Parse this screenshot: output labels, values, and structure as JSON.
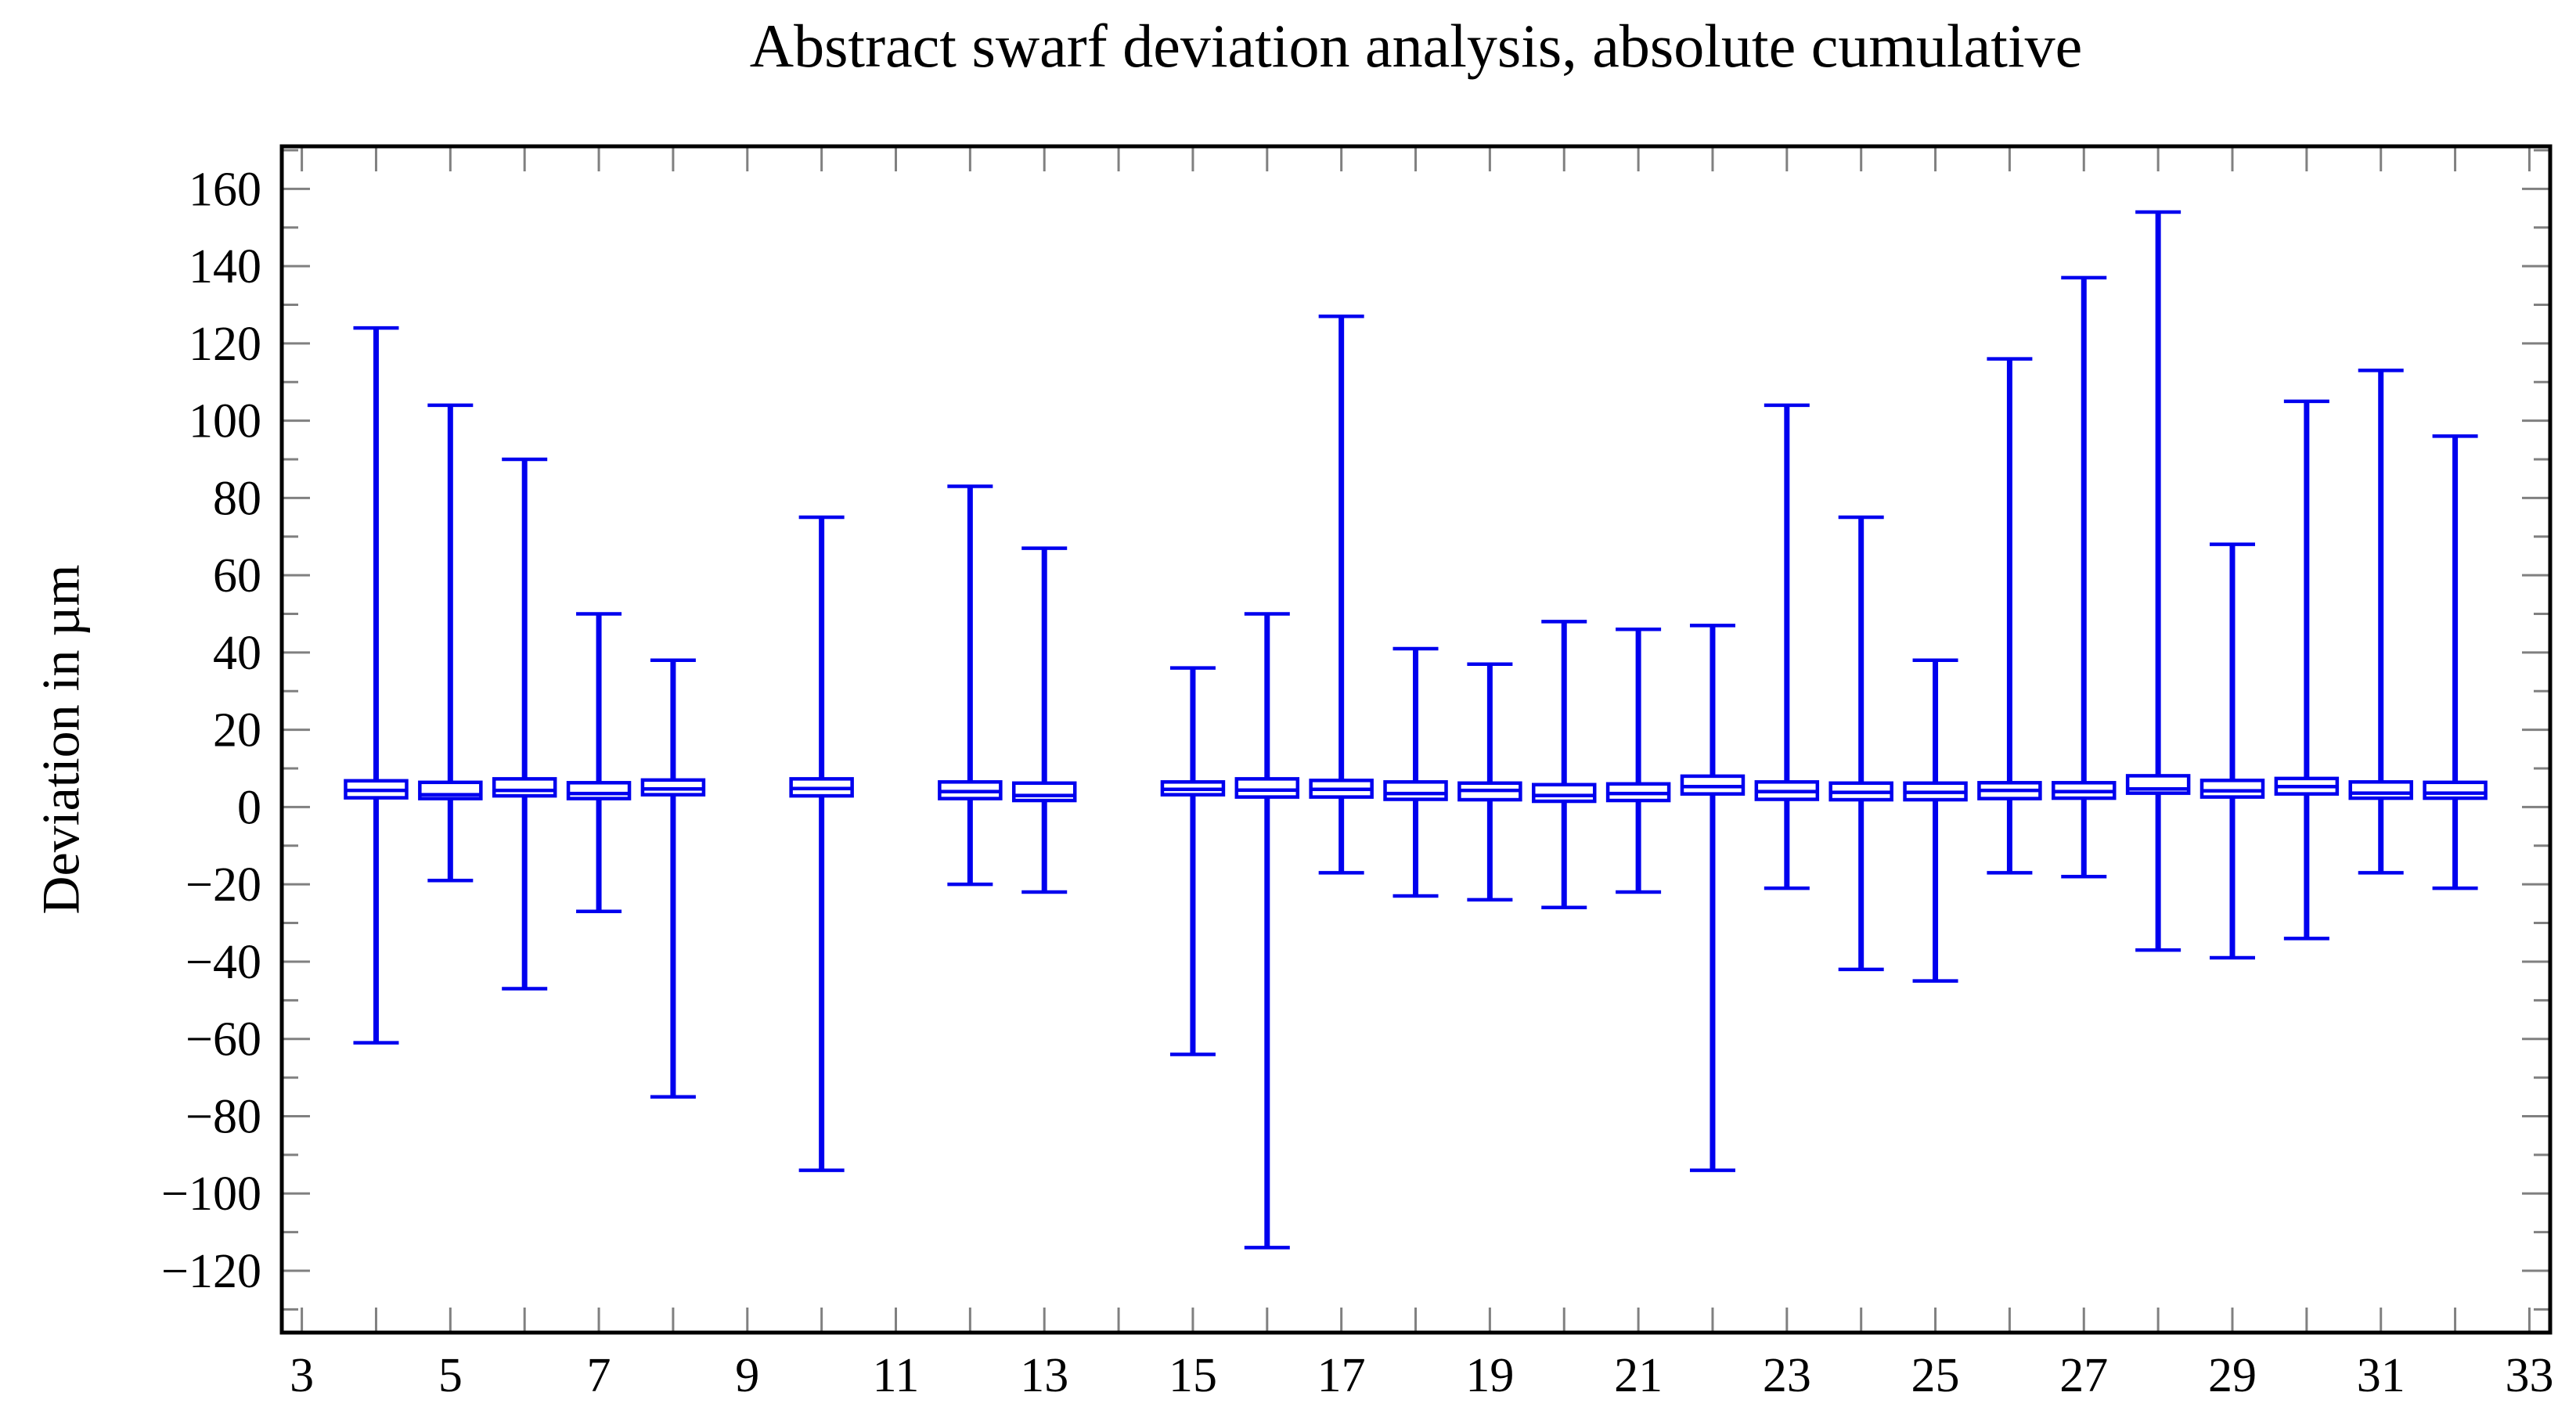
{
  "title": "Abstract swarf deviation analysis, absolute cumulative",
  "y_axis_label": "Deviation in µm",
  "colors": {
    "box": "#0000ee",
    "box_fill": "#ffffff",
    "axis": "#000000",
    "tick": "#808080",
    "text": "#000000",
    "background": "#ffffff"
  },
  "chart_data": {
    "type": "boxplot",
    "title": "Abstract swarf deviation analysis, absolute cumulative",
    "xlabel": "",
    "ylabel": "Deviation in µm",
    "xlim": [
      2.73,
      33.28
    ],
    "ylim": [
      -136,
      171
    ],
    "grid": false,
    "legend": "none",
    "x_tick_step": 1,
    "x_label_values": [
      3,
      5,
      7,
      9,
      11,
      13,
      15,
      17,
      19,
      21,
      23,
      25,
      27,
      29,
      31,
      33
    ],
    "y_major_tick_step": 20,
    "y_minor_tick_step": 10,
    "y_label_values": [
      160,
      140,
      120,
      100,
      80,
      60,
      40,
      20,
      0,
      -20,
      -40,
      -60,
      -80,
      -100,
      -120
    ],
    "mirrored_ticks_top_right": true,
    "boxes": [
      {
        "x": 4,
        "low": -61,
        "q1": 2.4,
        "median": 4.3,
        "q3": 6.8,
        "high": 124
      },
      {
        "x": 5,
        "low": -19,
        "q1": 2.2,
        "median": 3.2,
        "q3": 6.4,
        "high": 104
      },
      {
        "x": 6,
        "low": -47,
        "q1": 2.9,
        "median": 4.3,
        "q3": 7.3,
        "high": 90
      },
      {
        "x": 7,
        "low": -27,
        "q1": 2.2,
        "median": 3.5,
        "q3": 6.3,
        "high": 50
      },
      {
        "x": 8,
        "low": -75,
        "q1": 3.2,
        "median": 4.7,
        "q3": 7.0,
        "high": 38
      },
      {
        "x": 10,
        "low": -94,
        "q1": 2.9,
        "median": 4.8,
        "q3": 7.3,
        "high": 75
      },
      {
        "x": 12,
        "low": -20,
        "q1": 2.2,
        "median": 4.0,
        "q3": 6.5,
        "high": 83
      },
      {
        "x": 13,
        "low": -22,
        "q1": 1.7,
        "median": 3.0,
        "q3": 6.2,
        "high": 67
      },
      {
        "x": 15,
        "low": -64,
        "q1": 3.2,
        "median": 4.6,
        "q3": 6.5,
        "high": 36
      },
      {
        "x": 16,
        "low": -114,
        "q1": 2.6,
        "median": 4.4,
        "q3": 7.3,
        "high": 50
      },
      {
        "x": 17,
        "low": -17,
        "q1": 2.6,
        "median": 4.6,
        "q3": 6.9,
        "high": 127
      },
      {
        "x": 18,
        "low": -23,
        "q1": 2.0,
        "median": 3.5,
        "q3": 6.5,
        "high": 41
      },
      {
        "x": 19,
        "low": -24,
        "q1": 1.9,
        "median": 4.3,
        "q3": 6.2,
        "high": 37
      },
      {
        "x": 20,
        "low": -26,
        "q1": 1.5,
        "median": 3.0,
        "q3": 5.8,
        "high": 48
      },
      {
        "x": 21,
        "low": -22,
        "q1": 1.7,
        "median": 3.5,
        "q3": 6.0,
        "high": 46
      },
      {
        "x": 22,
        "low": -94,
        "q1": 3.4,
        "median": 5.3,
        "q3": 8.0,
        "high": 47
      },
      {
        "x": 23,
        "low": -21,
        "q1": 2.0,
        "median": 4.0,
        "q3": 6.5,
        "high": 104
      },
      {
        "x": 24,
        "low": -42,
        "q1": 1.9,
        "median": 3.8,
        "q3": 6.2,
        "high": 75
      },
      {
        "x": 25,
        "low": -45,
        "q1": 1.9,
        "median": 3.8,
        "q3": 6.2,
        "high": 38
      },
      {
        "x": 26,
        "low": -17,
        "q1": 2.2,
        "median": 4.3,
        "q3": 6.3,
        "high": 116
      },
      {
        "x": 27,
        "low": -18,
        "q1": 2.3,
        "median": 4.0,
        "q3": 6.3,
        "high": 137
      },
      {
        "x": 28,
        "low": -37,
        "q1": 3.6,
        "median": 4.7,
        "q3": 8.1,
        "high": 154
      },
      {
        "x": 29,
        "low": -39,
        "q1": 2.6,
        "median": 4.2,
        "q3": 6.9,
        "high": 68
      },
      {
        "x": 30,
        "low": -34,
        "q1": 3.4,
        "median": 5.3,
        "q3": 7.4,
        "high": 105
      },
      {
        "x": 31,
        "low": -17,
        "q1": 2.3,
        "median": 3.6,
        "q3": 6.5,
        "high": 113
      },
      {
        "x": 32,
        "low": -21,
        "q1": 2.3,
        "median": 3.6,
        "q3": 6.4,
        "high": 96
      }
    ]
  }
}
